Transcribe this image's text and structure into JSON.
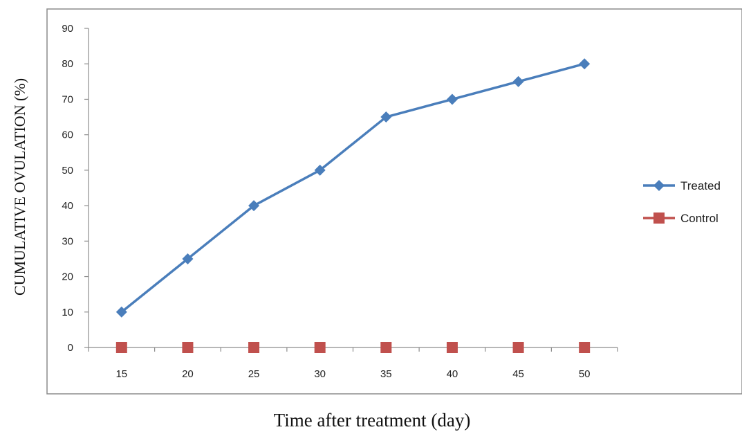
{
  "chart_data": {
    "type": "line",
    "title": "",
    "xlabel": "Time after treatment (day)",
    "ylabel": "CUMULATIVE OVULATION (%)",
    "x": [
      15,
      20,
      25,
      30,
      35,
      40,
      45,
      50
    ],
    "xticks": [
      "15",
      "20",
      "25",
      "30",
      "35",
      "40",
      "45",
      "50"
    ],
    "ylim": [
      0,
      90
    ],
    "yticks": [
      0,
      10,
      20,
      30,
      40,
      50,
      60,
      70,
      80,
      90
    ],
    "grid": false,
    "legend": "right",
    "series": [
      {
        "name": "Treated",
        "values": [
          10,
          25,
          40,
          50,
          65,
          70,
          75,
          80
        ],
        "color": "#4a7ebb",
        "marker": "diamond"
      },
      {
        "name": "Control",
        "values": [
          0,
          0,
          0,
          0,
          0,
          0,
          0,
          0
        ],
        "color": "#c0504d",
        "marker": "square"
      }
    ]
  }
}
